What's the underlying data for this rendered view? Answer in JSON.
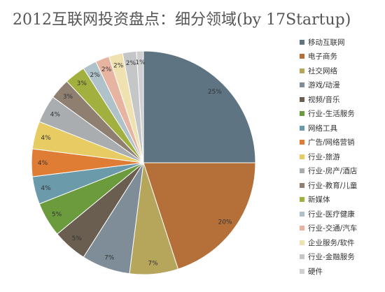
{
  "title": "2012互联网投资盘点：细分领域(by 17Startup)",
  "chart_data": {
    "type": "pie",
    "title": "2012互联网投资盘点：细分领域(by 17Startup)",
    "slices": [
      {
        "label": "移动互联网",
        "value": 25,
        "pct_label": "25%",
        "color": "#5E7482"
      },
      {
        "label": "电子商务",
        "value": 20,
        "pct_label": "20%",
        "color": "#B5703A"
      },
      {
        "label": "社交网络",
        "value": 7,
        "pct_label": "7%",
        "color": "#B5A65C"
      },
      {
        "label": "游戏/动漫",
        "value": 7,
        "pct_label": "7%",
        "color": "#7E8D97"
      },
      {
        "label": "视频/音乐",
        "value": 5,
        "pct_label": "5%",
        "color": "#6A5E50"
      },
      {
        "label": "行业-生活服务",
        "value": 5,
        "pct_label": "5%",
        "color": "#6C9B3D"
      },
      {
        "label": "网络工具",
        "value": 4,
        "pct_label": "4%",
        "color": "#6B9BAA"
      },
      {
        "label": "广告/网络营销",
        "value": 4,
        "pct_label": "4%",
        "color": "#E07D35"
      },
      {
        "label": "行业-旅游",
        "value": 4,
        "pct_label": "4%",
        "color": "#E7CB63"
      },
      {
        "label": "行业-房产/酒店",
        "value": 4,
        "pct_label": "4%",
        "color": "#A9ADB0"
      },
      {
        "label": "行业-教育/儿童",
        "value": 3,
        "pct_label": "3%",
        "color": "#8E7F70"
      },
      {
        "label": "新媒体",
        "value": 3,
        "pct_label": "3%",
        "color": "#A2B03F"
      },
      {
        "label": "行业-医疗健康",
        "value": 2,
        "pct_label": "2%",
        "color": "#AFC1C9"
      },
      {
        "label": "行业-交通/汽车",
        "value": 2,
        "pct_label": "2%",
        "color": "#E8B4A2"
      },
      {
        "label": "企业服务/软件",
        "value": 2,
        "pct_label": "2%",
        "color": "#F0E2B0"
      },
      {
        "label": "行业-金融服务",
        "value": 2,
        "pct_label": "2%",
        "color": "#C4C6C8"
      },
      {
        "label": "硬件",
        "value": 1,
        "pct_label": "1%",
        "color": "#D0D0D0"
      }
    ],
    "legend_position": "right",
    "start_angle": "top",
    "direction": "clockwise"
  }
}
